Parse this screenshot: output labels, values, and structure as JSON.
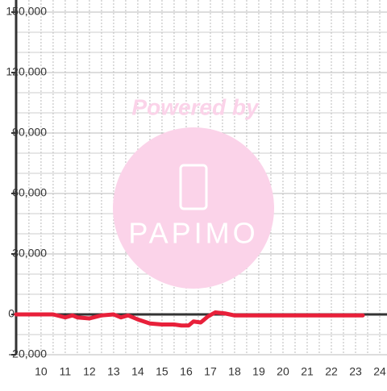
{
  "chart_data": {
    "type": "line",
    "x": [
      8.97,
      10,
      10.5,
      11,
      11.3,
      11.5,
      12,
      12.5,
      13,
      13.3,
      13.6,
      14,
      14.5,
      15,
      15.5,
      15.8,
      16.1,
      16.3,
      16.6,
      16.9,
      17.2,
      17.6,
      18,
      19,
      20,
      21,
      22,
      23.3
    ],
    "series": [
      {
        "color": "#e8203a",
        "values": [
          0,
          0,
          0,
          -1500,
          -500,
          -1500,
          -2000,
          -500,
          0,
          -1500,
          -500,
          -2500,
          -4500,
          -5000,
          -5000,
          -5500,
          -5500,
          -3500,
          -4000,
          -1000,
          1000,
          500,
          -500,
          -500,
          -500,
          -500,
          -500,
          -500
        ]
      }
    ],
    "xlim": [
      8.97,
      24.3
    ],
    "ylim": [
      -20000,
      150000
    ],
    "xticks": [
      10,
      11,
      12,
      13,
      14,
      15,
      16,
      17,
      18,
      19,
      20,
      21,
      22,
      23,
      24
    ],
    "yticks": [
      {
        "value": -20000,
        "label": "-20,000"
      },
      0,
      {
        "value": 30000,
        "label": "30,000"
      },
      {
        "value": 60000,
        "label": "60,000"
      },
      {
        "value": 90000,
        "label": "90,000"
      },
      {
        "value": 120000,
        "label": "120,000"
      },
      {
        "value": 150000,
        "label": "150,000"
      }
    ],
    "minor_yticks": [
      10000,
      20000,
      40000,
      50000,
      70000,
      80000,
      100000,
      110000,
      130000,
      140000,
      -10000
    ],
    "minor_xticks": [
      9.5,
      10.5,
      11.5,
      12.5,
      13.5,
      14.5,
      15.5,
      16.5,
      17.5,
      18.5,
      19.5,
      20.5,
      21.5,
      22.5,
      23.5
    ],
    "grid": true,
    "watermark": [
      "Powered by",
      "PAPIMO"
    ]
  }
}
